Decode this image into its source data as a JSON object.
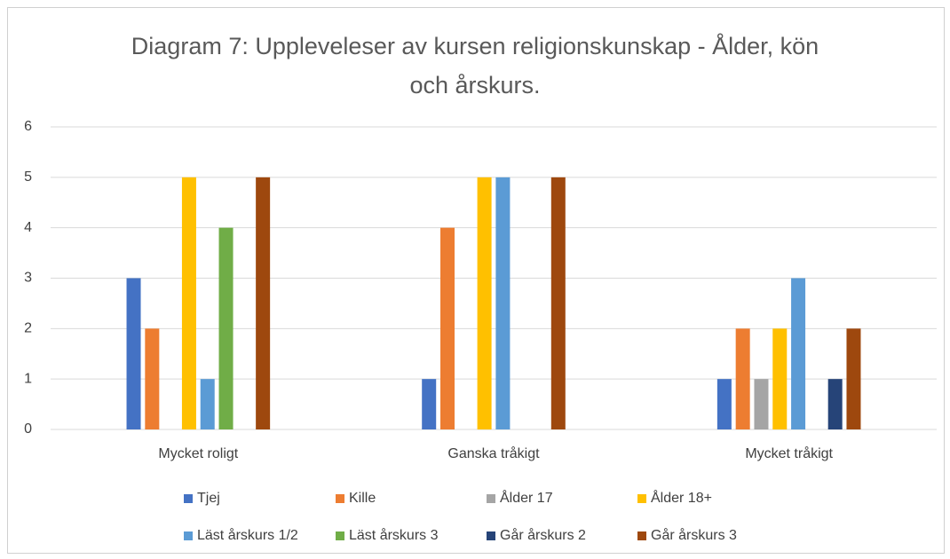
{
  "chart_data": {
    "type": "bar",
    "title": "Diagram 7: Uppleveleser av kursen religionskunskap - Ålder, kön och årskurs.",
    "categories": [
      "Mycket roligt",
      "Ganska tråkigt",
      "Mycket tråkigt"
    ],
    "series": [
      {
        "name": "Tjej",
        "color": "#4472c4",
        "values": [
          3,
          1,
          1
        ]
      },
      {
        "name": "Kille",
        "color": "#ed7d31",
        "values": [
          2,
          4,
          2
        ]
      },
      {
        "name": "Ålder 17",
        "color": "#a5a5a5",
        "values": [
          0,
          0,
          1
        ]
      },
      {
        "name": "Ålder 18+",
        "color": "#ffc000",
        "values": [
          5,
          5,
          2
        ]
      },
      {
        "name": "Läst årskurs 1/2",
        "color": "#5b9bd5",
        "values": [
          1,
          5,
          3
        ]
      },
      {
        "name": "Läst årskurs 3",
        "color": "#70ad47",
        "values": [
          4,
          0,
          0
        ]
      },
      {
        "name": "Går årskurs 2",
        "color": "#264478",
        "values": [
          0,
          0,
          1
        ]
      },
      {
        "name": "Går årskurs 3",
        "color": "#9e480e",
        "values": [
          5,
          5,
          2
        ]
      }
    ],
    "ylim": [
      0,
      6
    ],
    "yticks": [
      0,
      1,
      2,
      3,
      4,
      5,
      6
    ],
    "grid": true,
    "legend": "bottom"
  }
}
